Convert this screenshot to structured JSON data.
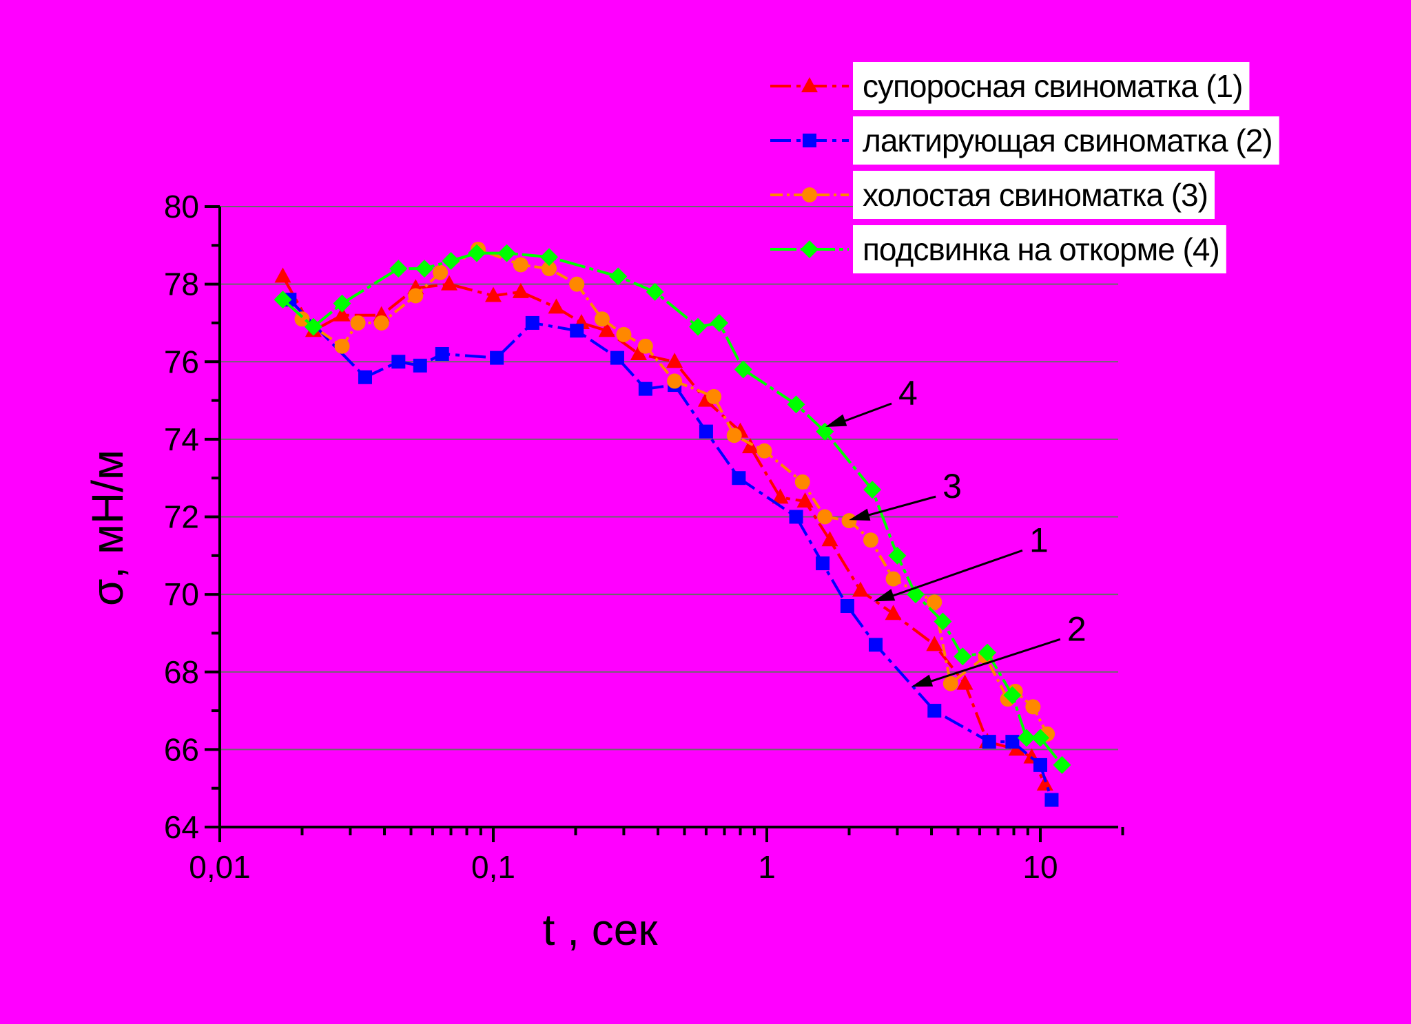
{
  "chart_data": {
    "type": "line",
    "xlabel": "t , сек",
    "ylabel": "σ, мН/м",
    "x_scale": "log",
    "xlim": [
      0.01,
      20
    ],
    "ylim": [
      64,
      80
    ],
    "x_ticks": [
      {
        "value": 0.01,
        "label": "0,01"
      },
      {
        "value": 0.1,
        "label": "0,1"
      },
      {
        "value": 1,
        "label": "1"
      },
      {
        "value": 10,
        "label": "10"
      }
    ],
    "y_ticks": [
      {
        "value": 64,
        "label": "64"
      },
      {
        "value": 66,
        "label": "66"
      },
      {
        "value": 68,
        "label": "68"
      },
      {
        "value": 70,
        "label": "70"
      },
      {
        "value": 72,
        "label": "72"
      },
      {
        "value": 74,
        "label": "74"
      },
      {
        "value": 76,
        "label": "76"
      },
      {
        "value": 78,
        "label": "78"
      },
      {
        "value": 80,
        "label": "80"
      }
    ],
    "grid": "horizontal",
    "legend_position": "top-right",
    "series": [
      {
        "name": "супоросная свиноматка (1)",
        "color": "#ff0000",
        "marker": "triangle",
        "points": [
          [
            0.017,
            78.2
          ],
          [
            0.022,
            76.8
          ],
          [
            0.028,
            77.2
          ],
          [
            0.039,
            77.2
          ],
          [
            0.052,
            77.9
          ],
          [
            0.069,
            78.0
          ],
          [
            0.1,
            77.7
          ],
          [
            0.126,
            77.8
          ],
          [
            0.17,
            77.4
          ],
          [
            0.21,
            77.0
          ],
          [
            0.26,
            76.8
          ],
          [
            0.34,
            76.2
          ],
          [
            0.46,
            76.0
          ],
          [
            0.6,
            75.0
          ],
          [
            0.8,
            74.2
          ],
          [
            0.87,
            73.8
          ],
          [
            1.12,
            72.5
          ],
          [
            1.38,
            72.4
          ],
          [
            1.7,
            71.4
          ],
          [
            2.2,
            70.1
          ],
          [
            2.9,
            69.5
          ],
          [
            4.1,
            68.7
          ],
          [
            5.3,
            67.7
          ],
          [
            6.4,
            66.2
          ],
          [
            8.2,
            66.0
          ],
          [
            9.3,
            65.8
          ],
          [
            10.4,
            65.1
          ]
        ]
      },
      {
        "name": "лактирующая свиноматка (2)",
        "color": "#0000ff",
        "marker": "square",
        "points": [
          [
            0.018,
            77.6
          ],
          [
            0.034,
            75.6
          ],
          [
            0.045,
            76.0
          ],
          [
            0.054,
            75.9
          ],
          [
            0.065,
            76.2
          ],
          [
            0.103,
            76.1
          ],
          [
            0.139,
            77.0
          ],
          [
            0.202,
            76.8
          ],
          [
            0.284,
            76.1
          ],
          [
            0.36,
            75.3
          ],
          [
            0.46,
            75.4
          ],
          [
            0.6,
            74.2
          ],
          [
            0.79,
            73.0
          ],
          [
            1.28,
            72.0
          ],
          [
            1.6,
            70.8
          ],
          [
            1.97,
            69.7
          ],
          [
            2.5,
            68.7
          ],
          [
            4.1,
            67.0
          ],
          [
            6.5,
            66.2
          ],
          [
            7.9,
            66.2
          ],
          [
            10.0,
            65.6
          ],
          [
            11.0,
            64.7
          ]
        ]
      },
      {
        "name": "холостая свиноматка (3)",
        "color": "#ff8800",
        "marker": "circle",
        "points": [
          [
            0.02,
            77.1
          ],
          [
            0.028,
            76.4
          ],
          [
            0.032,
            77.0
          ],
          [
            0.039,
            77.0
          ],
          [
            0.052,
            77.7
          ],
          [
            0.064,
            78.3
          ],
          [
            0.088,
            78.9
          ],
          [
            0.126,
            78.5
          ],
          [
            0.16,
            78.4
          ],
          [
            0.202,
            78.0
          ],
          [
            0.25,
            77.1
          ],
          [
            0.3,
            76.7
          ],
          [
            0.36,
            76.4
          ],
          [
            0.46,
            75.5
          ],
          [
            0.64,
            75.1
          ],
          [
            0.76,
            74.1
          ],
          [
            0.98,
            73.7
          ],
          [
            1.35,
            72.9
          ],
          [
            1.63,
            72.0
          ],
          [
            2.0,
            71.9
          ],
          [
            2.4,
            71.4
          ],
          [
            2.9,
            70.4
          ],
          [
            4.1,
            69.8
          ],
          [
            4.7,
            67.7
          ],
          [
            6.3,
            68.4
          ],
          [
            7.6,
            67.3
          ],
          [
            8.1,
            67.5
          ],
          [
            9.4,
            67.1
          ],
          [
            10.6,
            66.4
          ]
        ]
      },
      {
        "name": "подсвинка на откорме (4)",
        "color": "#00ff00",
        "marker": "diamond",
        "points": [
          [
            0.017,
            77.6
          ],
          [
            0.022,
            76.9
          ],
          [
            0.028,
            77.5
          ],
          [
            0.045,
            78.4
          ],
          [
            0.056,
            78.4
          ],
          [
            0.07,
            78.6
          ],
          [
            0.087,
            78.8
          ],
          [
            0.112,
            78.8
          ],
          [
            0.16,
            78.7
          ],
          [
            0.286,
            78.2
          ],
          [
            0.39,
            77.8
          ],
          [
            0.56,
            76.9
          ],
          [
            0.67,
            77.0
          ],
          [
            0.82,
            75.8
          ],
          [
            1.28,
            74.9
          ],
          [
            1.63,
            74.2
          ],
          [
            2.43,
            72.7
          ],
          [
            3.0,
            71.0
          ],
          [
            3.5,
            70.0
          ],
          [
            4.4,
            69.3
          ],
          [
            5.2,
            68.4
          ],
          [
            6.4,
            68.5
          ],
          [
            7.9,
            67.4
          ],
          [
            8.9,
            66.3
          ],
          [
            10.0,
            66.3
          ],
          [
            12.0,
            65.6
          ]
        ]
      }
    ],
    "annotations": [
      {
        "label": "4",
        "target": [
          1.6,
          74.3
        ]
      },
      {
        "label": "3",
        "target": [
          1.95,
          71.9
        ]
      },
      {
        "label": "1",
        "target": [
          2.4,
          69.8
        ]
      },
      {
        "label": "2",
        "target": [
          3.3,
          67.6
        ]
      }
    ]
  }
}
